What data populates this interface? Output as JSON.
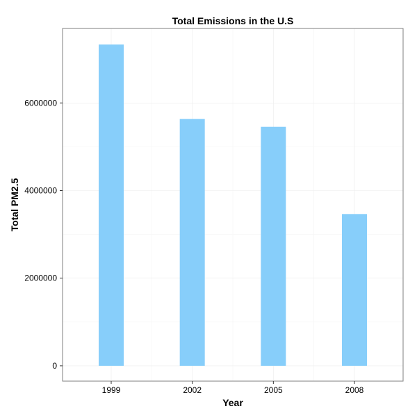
{
  "chart_data": {
    "type": "bar",
    "title": "Total Emissions in the U.S",
    "xlabel": "Year",
    "ylabel": "Total PM2.5",
    "categories": [
      "1999",
      "2002",
      "2005",
      "2008"
    ],
    "values": [
      7332967,
      5635780,
      5454703,
      3464206
    ],
    "ylim": [
      -350000,
      7700000
    ],
    "yticks": [
      0,
      2000000,
      4000000,
      6000000
    ],
    "ytick_labels": [
      "0",
      "2000000",
      "4000000",
      "6000000"
    ],
    "grid": true,
    "legend": "none",
    "colors": {
      "bar": "#87CEFA",
      "grid_major": "#ebebeb",
      "grid_minor": "#f5f5f5",
      "panel_border": "#7f7f7f",
      "tick": "#333333"
    }
  }
}
